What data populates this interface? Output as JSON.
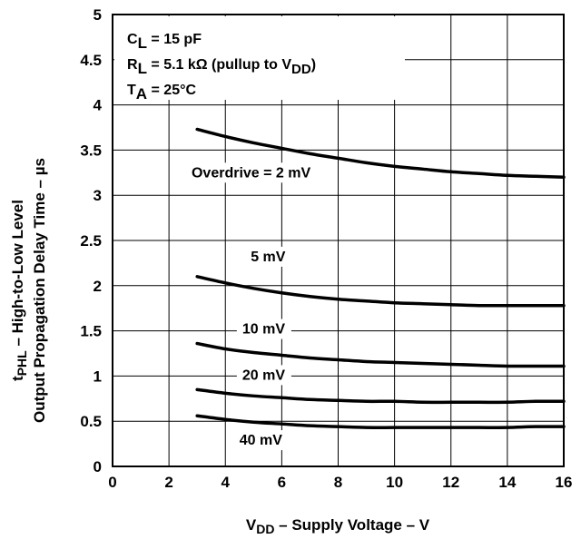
{
  "chart_data": {
    "type": "line",
    "xlabel": {
      "main": "V",
      "sub": "DD",
      "rest": " – Supply Voltage – V"
    },
    "ylabel": {
      "line1": {
        "pre": "t",
        "sub": "PHL",
        "rest": " – High-to-Low Level"
      },
      "line2": "Output Propagation Delay Time – µs"
    },
    "xlim": [
      0,
      16
    ],
    "ylim": [
      0,
      5
    ],
    "xticks": [
      "0",
      "2",
      "4",
      "6",
      "8",
      "10",
      "12",
      "14",
      "16"
    ],
    "yticks": [
      "0",
      "0.5",
      "1",
      "1.5",
      "2",
      "2.5",
      "3",
      "3.5",
      "4",
      "4.5",
      "5"
    ],
    "grid": true,
    "conditions": [
      {
        "pre": "C",
        "sub": "L",
        "post": " = 15 pF",
        "sub2": "",
        "post2": ""
      },
      {
        "pre": "R",
        "sub": "L",
        "post": " = 5.1 kΩ (pullup to V",
        "sub2": "DD",
        "post2": ")"
      },
      {
        "pre": "T",
        "sub": "A",
        "post": " =  25°C",
        "sub2": "",
        "post2": ""
      }
    ],
    "series": [
      {
        "name": "Overdrive = 2 mV",
        "x": [
          3,
          4,
          5,
          6,
          7,
          8,
          9,
          10,
          11,
          12,
          13,
          14,
          15,
          16
        ],
        "y": [
          3.73,
          3.65,
          3.58,
          3.52,
          3.46,
          3.41,
          3.36,
          3.32,
          3.29,
          3.26,
          3.24,
          3.22,
          3.21,
          3.2
        ]
      },
      {
        "name": "5 mV",
        "x": [
          3,
          4,
          5,
          6,
          7,
          8,
          9,
          10,
          11,
          12,
          13,
          14,
          15,
          16
        ],
        "y": [
          2.1,
          2.03,
          1.97,
          1.92,
          1.88,
          1.85,
          1.83,
          1.81,
          1.8,
          1.79,
          1.78,
          1.78,
          1.78,
          1.78
        ]
      },
      {
        "name": "10 mV",
        "x": [
          3,
          4,
          5,
          6,
          7,
          8,
          9,
          10,
          11,
          12,
          13,
          14,
          15,
          16
        ],
        "y": [
          1.36,
          1.3,
          1.26,
          1.23,
          1.2,
          1.18,
          1.16,
          1.15,
          1.14,
          1.13,
          1.12,
          1.11,
          1.11,
          1.11
        ]
      },
      {
        "name": "20 mV",
        "x": [
          3,
          4,
          5,
          6,
          7,
          8,
          9,
          10,
          11,
          12,
          13,
          14,
          15,
          16
        ],
        "y": [
          0.85,
          0.81,
          0.78,
          0.76,
          0.74,
          0.73,
          0.72,
          0.72,
          0.71,
          0.71,
          0.71,
          0.71,
          0.72,
          0.72
        ]
      },
      {
        "name": "40 mV",
        "x": [
          3,
          4,
          5,
          6,
          7,
          8,
          9,
          10,
          11,
          12,
          13,
          14,
          15,
          16
        ],
        "y": [
          0.56,
          0.52,
          0.49,
          0.47,
          0.45,
          0.44,
          0.43,
          0.43,
          0.43,
          0.43,
          0.43,
          0.43,
          0.44,
          0.44
        ]
      }
    ],
    "labels": [
      {
        "text": "Overdrive = 2 mV",
        "x": 2.8,
        "y": 3.2
      },
      {
        "text": "5 mV",
        "x": 4.9,
        "y": 2.27
      },
      {
        "text": "10 mV",
        "x": 4.6,
        "y": 1.47
      },
      {
        "text": "20 mV",
        "x": 4.6,
        "y": 0.96
      },
      {
        "text": "40 mV",
        "x": 4.5,
        "y": 0.24
      }
    ]
  }
}
